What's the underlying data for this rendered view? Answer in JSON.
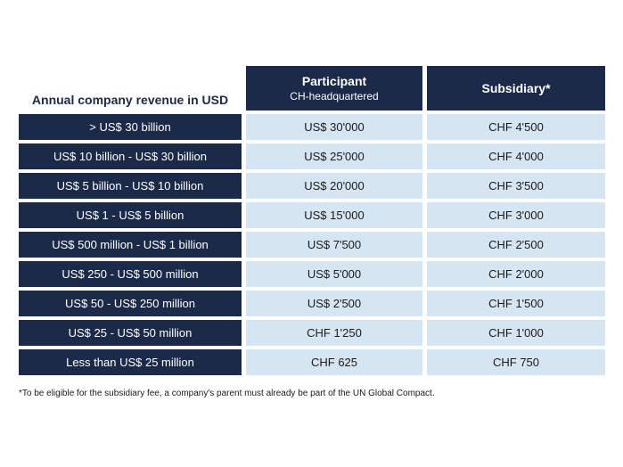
{
  "table": {
    "header": {
      "revenue_label": "Annual company revenue in USD",
      "participant_title": "Participant",
      "participant_subtitle": "CH-headquartered",
      "subsidiary_title": "Subsidiary*"
    },
    "rows": [
      {
        "revenue": "> US$ 30 billion",
        "participant": "US$ 30'000",
        "subsidiary": "CHF 4'500"
      },
      {
        "revenue": "US$ 10 billion - US$ 30 billion",
        "participant": "US$ 25'000",
        "subsidiary": "CHF 4'000"
      },
      {
        "revenue": "US$ 5 billion - US$ 10 billion",
        "participant": "US$ 20'000",
        "subsidiary": "CHF 3'500"
      },
      {
        "revenue": "US$ 1 - US$ 5 billion",
        "participant": "US$ 15'000",
        "subsidiary": "CHF 3'000"
      },
      {
        "revenue": "US$ 500 million - US$ 1 billion",
        "participant": "US$ 7'500",
        "subsidiary": "CHF 2'500"
      },
      {
        "revenue": "US$ 250 - US$ 500 million",
        "participant": "US$ 5'000",
        "subsidiary": "CHF 2'000"
      },
      {
        "revenue": "US$ 50 - US$ 250 million",
        "participant": "US$ 2'500",
        "subsidiary": "CHF 1'500"
      },
      {
        "revenue": "US$ 25 - US$ 50 million",
        "participant": "CHF 1'250",
        "subsidiary": "CHF 1'000"
      },
      {
        "revenue": "Less than US$ 25 million",
        "participant": "CHF 625",
        "subsidiary": "CHF 750"
      }
    ]
  },
  "footnote": "*To be eligible for the subsidiary fee, a company's parent must already be part of the UN Global Compact."
}
